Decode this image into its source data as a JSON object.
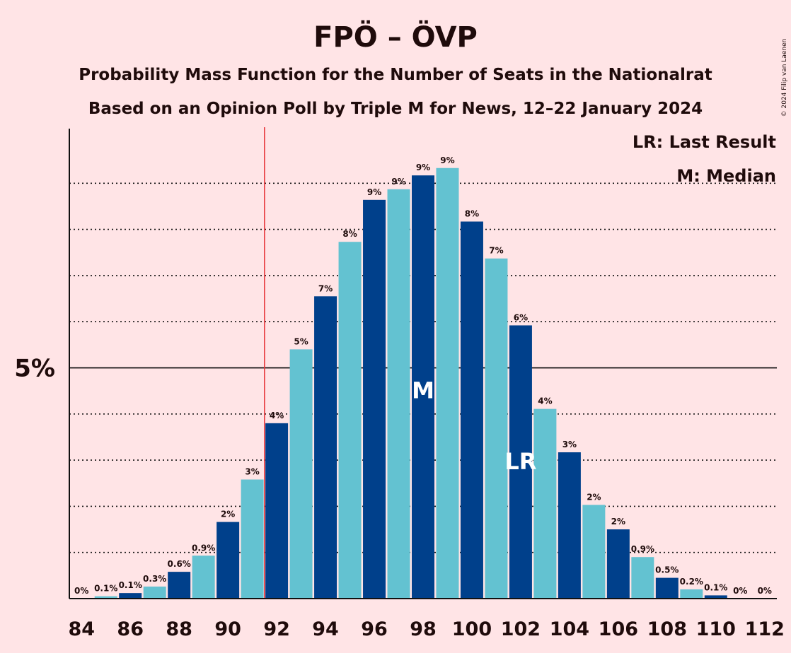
{
  "chart_data": {
    "type": "bar",
    "title": "FPÖ – ÖVP",
    "subtitle_1": "Probability Mass Function for the Number of Seats in the Nationalrat",
    "subtitle_2": "Based on an Opinion Poll by Triple M for News, 12–22 January 2024",
    "copyright": "© 2024 Filip van Laenen",
    "legend": [
      "LR: Last Result",
      "M: Median"
    ],
    "y_tick_label": "5%",
    "y_tick_value": 5,
    "ylim": [
      0,
      10.2
    ],
    "grid": "dotted",
    "legend_placement": "top-right",
    "x_tick_labels": [
      "84",
      "86",
      "88",
      "90",
      "92",
      "94",
      "96",
      "98",
      "100",
      "102",
      "104",
      "106",
      "108",
      "110",
      "112"
    ],
    "x_tick_values": [
      84,
      86,
      88,
      90,
      92,
      94,
      96,
      98,
      100,
      102,
      104,
      106,
      108,
      110,
      112
    ],
    "last_result_seat": 102,
    "median_seat": 98,
    "threshold_seat": 92,
    "colors": {
      "dark": "#00408b",
      "light": "#63c2d1",
      "threshold": "#e8383d",
      "background": "#ffe4e6"
    },
    "seats": [
      84,
      85,
      86,
      87,
      88,
      89,
      90,
      91,
      92,
      93,
      94,
      95,
      96,
      97,
      98,
      99,
      100,
      101,
      102,
      103,
      104,
      105,
      106,
      107,
      108,
      109,
      110,
      111,
      112
    ],
    "values": [
      0,
      0.05,
      0.12,
      0.26,
      0.58,
      0.93,
      1.66,
      2.58,
      3.8,
      5.4,
      6.55,
      7.73,
      8.64,
      8.87,
      9.17,
      9.33,
      8.17,
      7.37,
      5.92,
      4.11,
      3.17,
      2.03,
      1.5,
      0.9,
      0.45,
      0.2,
      0.07,
      0,
      0
    ],
    "labels": [
      "0%",
      "0.1%",
      "0.1%",
      "0.3%",
      "0.6%",
      "0.9%",
      "2%",
      "3%",
      "4%",
      "5%",
      "7%",
      "8%",
      "9%",
      "9%",
      "9%",
      "9%",
      "8%",
      "7%",
      "6%",
      "4%",
      "3%",
      "2%",
      "2%",
      "0.9%",
      "0.5%",
      "0.2%",
      "0.1%",
      "0%",
      "0%"
    ],
    "markers": {
      "median": "M",
      "last_result": "LR"
    }
  }
}
